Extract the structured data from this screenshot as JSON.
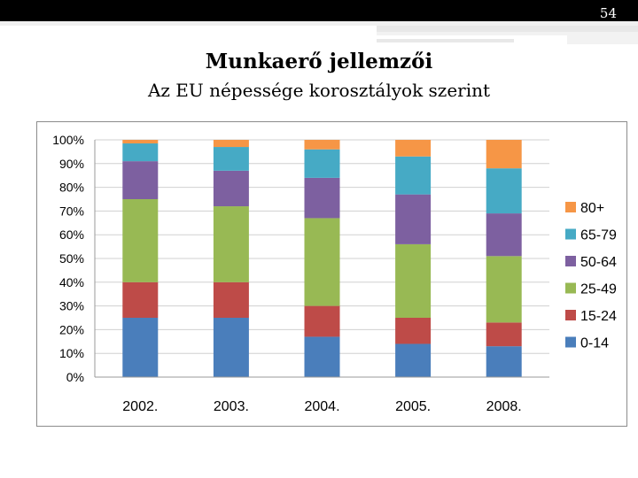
{
  "page_number": "54",
  "title": "Munkaerő jellemzői",
  "subtitle": "Az EU népessége korosztályok szerint",
  "colors": {
    "0-14": "#4a7ebb",
    "15-24": "#be4b48",
    "25-49": "#98b954",
    "50-64": "#7d60a0",
    "65-79": "#46aac5",
    "80+": "#f69646"
  },
  "chart_data": {
    "type": "bar",
    "stacked": "percent",
    "categories": [
      "2002.",
      "2003.",
      "2004.",
      "2005.",
      "2008."
    ],
    "yticks": [
      "0%",
      "10%",
      "20%",
      "30%",
      "40%",
      "50%",
      "60%",
      "70%",
      "80%",
      "90%",
      "100%"
    ],
    "ylim": [
      0,
      100
    ],
    "grid": true,
    "legend_position": "right",
    "series": [
      {
        "name": "0-14",
        "values": [
          25,
          25,
          17,
          14,
          13
        ]
      },
      {
        "name": "15-24",
        "values": [
          15,
          15,
          13,
          11,
          10
        ]
      },
      {
        "name": "25-49",
        "values": [
          35,
          32,
          37,
          31,
          28
        ]
      },
      {
        "name": "50-64",
        "values": [
          16,
          15,
          17,
          21,
          18
        ]
      },
      {
        "name": "65-79",
        "values": [
          7.5,
          10,
          12,
          16,
          19
        ]
      },
      {
        "name": "80+",
        "values": [
          1.5,
          3,
          4,
          7,
          12
        ]
      }
    ]
  }
}
